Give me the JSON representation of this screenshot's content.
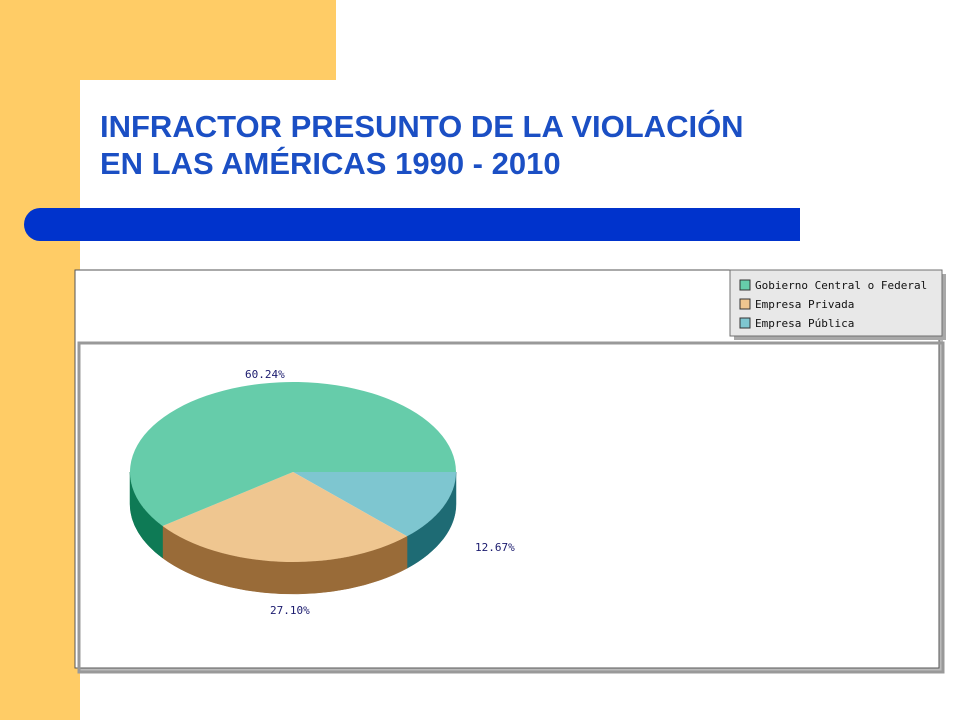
{
  "slide": {
    "title_line1": "INFRACTOR PRESUNTO DE LA VIOLACIÓN",
    "title_line2": "EN LAS AMÉRICAS 1990 - 2010"
  },
  "colors": {
    "background_strip": "#FFCC66",
    "title_text": "#1B4FC4",
    "title_bar": "#0033CC"
  },
  "chart_data": {
    "type": "pie",
    "title": "",
    "three_d": true,
    "legend_position": "top-right",
    "slices": [
      {
        "label": "Gobierno Central o Federal",
        "value": 60.24,
        "display": "60.24%",
        "color": "#66CCAA",
        "side_color": "#0E7A55"
      },
      {
        "label": "Empresa Privada",
        "value": 27.1,
        "display": "27.10%",
        "color": "#EFC690",
        "side_color": "#996B38"
      },
      {
        "label": "Empresa Pública",
        "value": 12.67,
        "display": "12.67%",
        "color": "#7EC6D0",
        "side_color": "#1E6B74"
      }
    ]
  }
}
